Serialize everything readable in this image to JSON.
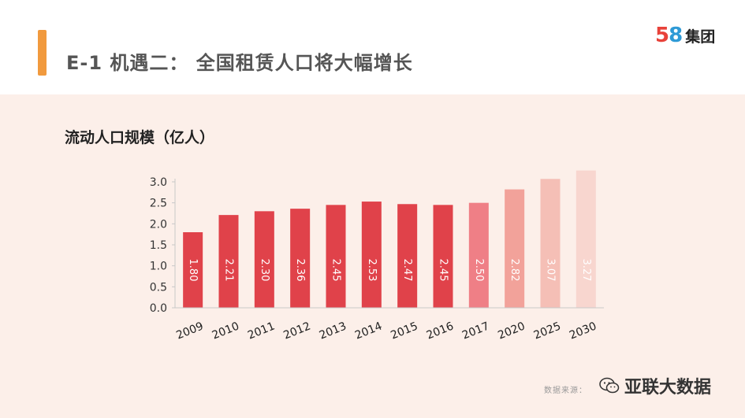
{
  "header": {
    "title": "E-1  机遇二：  全国租赁人口将大幅增长",
    "logo": {
      "num1": "5",
      "num2": "8",
      "text": "集团"
    }
  },
  "chart_data": {
    "type": "bar",
    "title": "流动人口规模（亿人）",
    "categories": [
      "2009",
      "2010",
      "2011",
      "2012",
      "2013",
      "2014",
      "2015",
      "2016",
      "2017",
      "2020",
      "2025",
      "2030"
    ],
    "values": [
      1.8,
      2.21,
      2.3,
      2.36,
      2.45,
      2.53,
      2.47,
      2.45,
      2.5,
      2.82,
      3.07,
      3.27
    ],
    "value_labels": [
      "1.80",
      "2.21",
      "2.30",
      "2.36",
      "2.45",
      "2.53",
      "2.47",
      "2.45",
      "2.50",
      "2.82",
      "3.07",
      "3.27"
    ],
    "ylim": [
      0,
      3.0
    ],
    "yticks": [
      "0.0",
      "0.5",
      "1.0",
      "1.5",
      "2.0",
      "2.5",
      "3.0"
    ],
    "xlabel": "",
    "ylabel": "",
    "grid": false,
    "bar_colors": [
      "#e0424a",
      "#e0424a",
      "#e0424a",
      "#e0424a",
      "#e0424a",
      "#e0424a",
      "#e0424a",
      "#e0424a",
      "#ef7f86",
      "#f2a29a",
      "#f5bfb6",
      "#f8d6cf"
    ]
  },
  "footer": {
    "source_label": "数据来源：",
    "watermark_text": "亚联大数据",
    "watermark_icon": "wechat-icon"
  }
}
